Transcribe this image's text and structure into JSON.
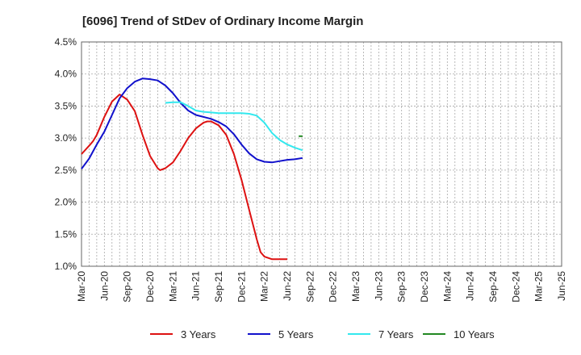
{
  "chart_data": {
    "type": "line",
    "title": "[6096]  Trend of StDev of Ordinary Income Margin",
    "xlabel": "",
    "ylabel": "",
    "ylim": [
      1.0,
      4.5
    ],
    "grid": true,
    "legend_position": "bottom",
    "x_ticks": [
      "Mar-20",
      "Jun-20",
      "Sep-20",
      "Dec-20",
      "Mar-21",
      "Jun-21",
      "Sep-21",
      "Dec-21",
      "Mar-22",
      "Jun-22",
      "Sep-22",
      "Dec-22",
      "Mar-23",
      "Jun-23",
      "Sep-23",
      "Dec-23",
      "Mar-24",
      "Jun-24",
      "Sep-24",
      "Dec-24",
      "Mar-25",
      "Jun-25"
    ],
    "y_ticks": [
      "1.0%",
      "1.5%",
      "2.0%",
      "2.5%",
      "3.0%",
      "3.5%",
      "4.0%",
      "4.5%"
    ],
    "y_tick_values": [
      1.0,
      1.5,
      2.0,
      2.5,
      3.0,
      3.5,
      4.0,
      4.5
    ],
    "series": [
      {
        "name": "3 Years",
        "color": "#dd1111",
        "points": [
          [
            0,
            2.75
          ],
          [
            1,
            2.88
          ],
          [
            1.5,
            2.95
          ],
          [
            2,
            3.05
          ],
          [
            3,
            3.33
          ],
          [
            4,
            3.57
          ],
          [
            5,
            3.68
          ],
          [
            6,
            3.6
          ],
          [
            7,
            3.42
          ],
          [
            8,
            3.05
          ],
          [
            9,
            2.72
          ],
          [
            10,
            2.53
          ],
          [
            10.3,
            2.5
          ],
          [
            11,
            2.53
          ],
          [
            12,
            2.62
          ],
          [
            13,
            2.8
          ],
          [
            14,
            3.0
          ],
          [
            15,
            3.15
          ],
          [
            16,
            3.24
          ],
          [
            16.5,
            3.26
          ],
          [
            17,
            3.26
          ],
          [
            18,
            3.2
          ],
          [
            19,
            3.05
          ],
          [
            20,
            2.75
          ],
          [
            21,
            2.35
          ],
          [
            22,
            1.88
          ],
          [
            23,
            1.42
          ],
          [
            23.5,
            1.22
          ],
          [
            24,
            1.15
          ],
          [
            25,
            1.11
          ],
          [
            26,
            1.11
          ],
          [
            27,
            1.11
          ]
        ]
      },
      {
        "name": "5 Years",
        "color": "#1111cc",
        "points": [
          [
            0,
            2.52
          ],
          [
            1,
            2.68
          ],
          [
            2,
            2.9
          ],
          [
            3,
            3.1
          ],
          [
            4,
            3.36
          ],
          [
            5,
            3.62
          ],
          [
            6,
            3.78
          ],
          [
            7,
            3.88
          ],
          [
            8,
            3.93
          ],
          [
            9,
            3.92
          ],
          [
            10,
            3.9
          ],
          [
            11,
            3.82
          ],
          [
            12,
            3.7
          ],
          [
            13,
            3.55
          ],
          [
            14,
            3.43
          ],
          [
            15,
            3.36
          ],
          [
            16,
            3.33
          ],
          [
            17,
            3.3
          ],
          [
            18,
            3.25
          ],
          [
            19,
            3.18
          ],
          [
            20,
            3.06
          ],
          [
            21,
            2.9
          ],
          [
            22,
            2.76
          ],
          [
            23,
            2.67
          ],
          [
            24,
            2.63
          ],
          [
            25,
            2.62
          ],
          [
            26,
            2.64
          ],
          [
            27,
            2.66
          ],
          [
            28,
            2.67
          ],
          [
            29,
            2.69
          ]
        ]
      },
      {
        "name": "7 Years",
        "color": "#33e8ee",
        "points": [
          [
            11,
            3.55
          ],
          [
            12,
            3.56
          ],
          [
            13,
            3.56
          ],
          [
            14,
            3.5
          ],
          [
            15,
            3.43
          ],
          [
            16,
            3.41
          ],
          [
            17,
            3.4
          ],
          [
            18,
            3.39
          ],
          [
            19,
            3.39
          ],
          [
            20,
            3.39
          ],
          [
            21,
            3.39
          ],
          [
            22,
            3.38
          ],
          [
            23,
            3.35
          ],
          [
            24,
            3.24
          ],
          [
            25,
            3.08
          ],
          [
            26,
            2.97
          ],
          [
            27,
            2.9
          ],
          [
            28,
            2.85
          ],
          [
            29,
            2.81
          ]
        ]
      },
      {
        "name": "10 Years",
        "color": "#228822",
        "points": [
          [
            28.5,
            3.03
          ],
          [
            29,
            3.03
          ]
        ]
      }
    ]
  }
}
